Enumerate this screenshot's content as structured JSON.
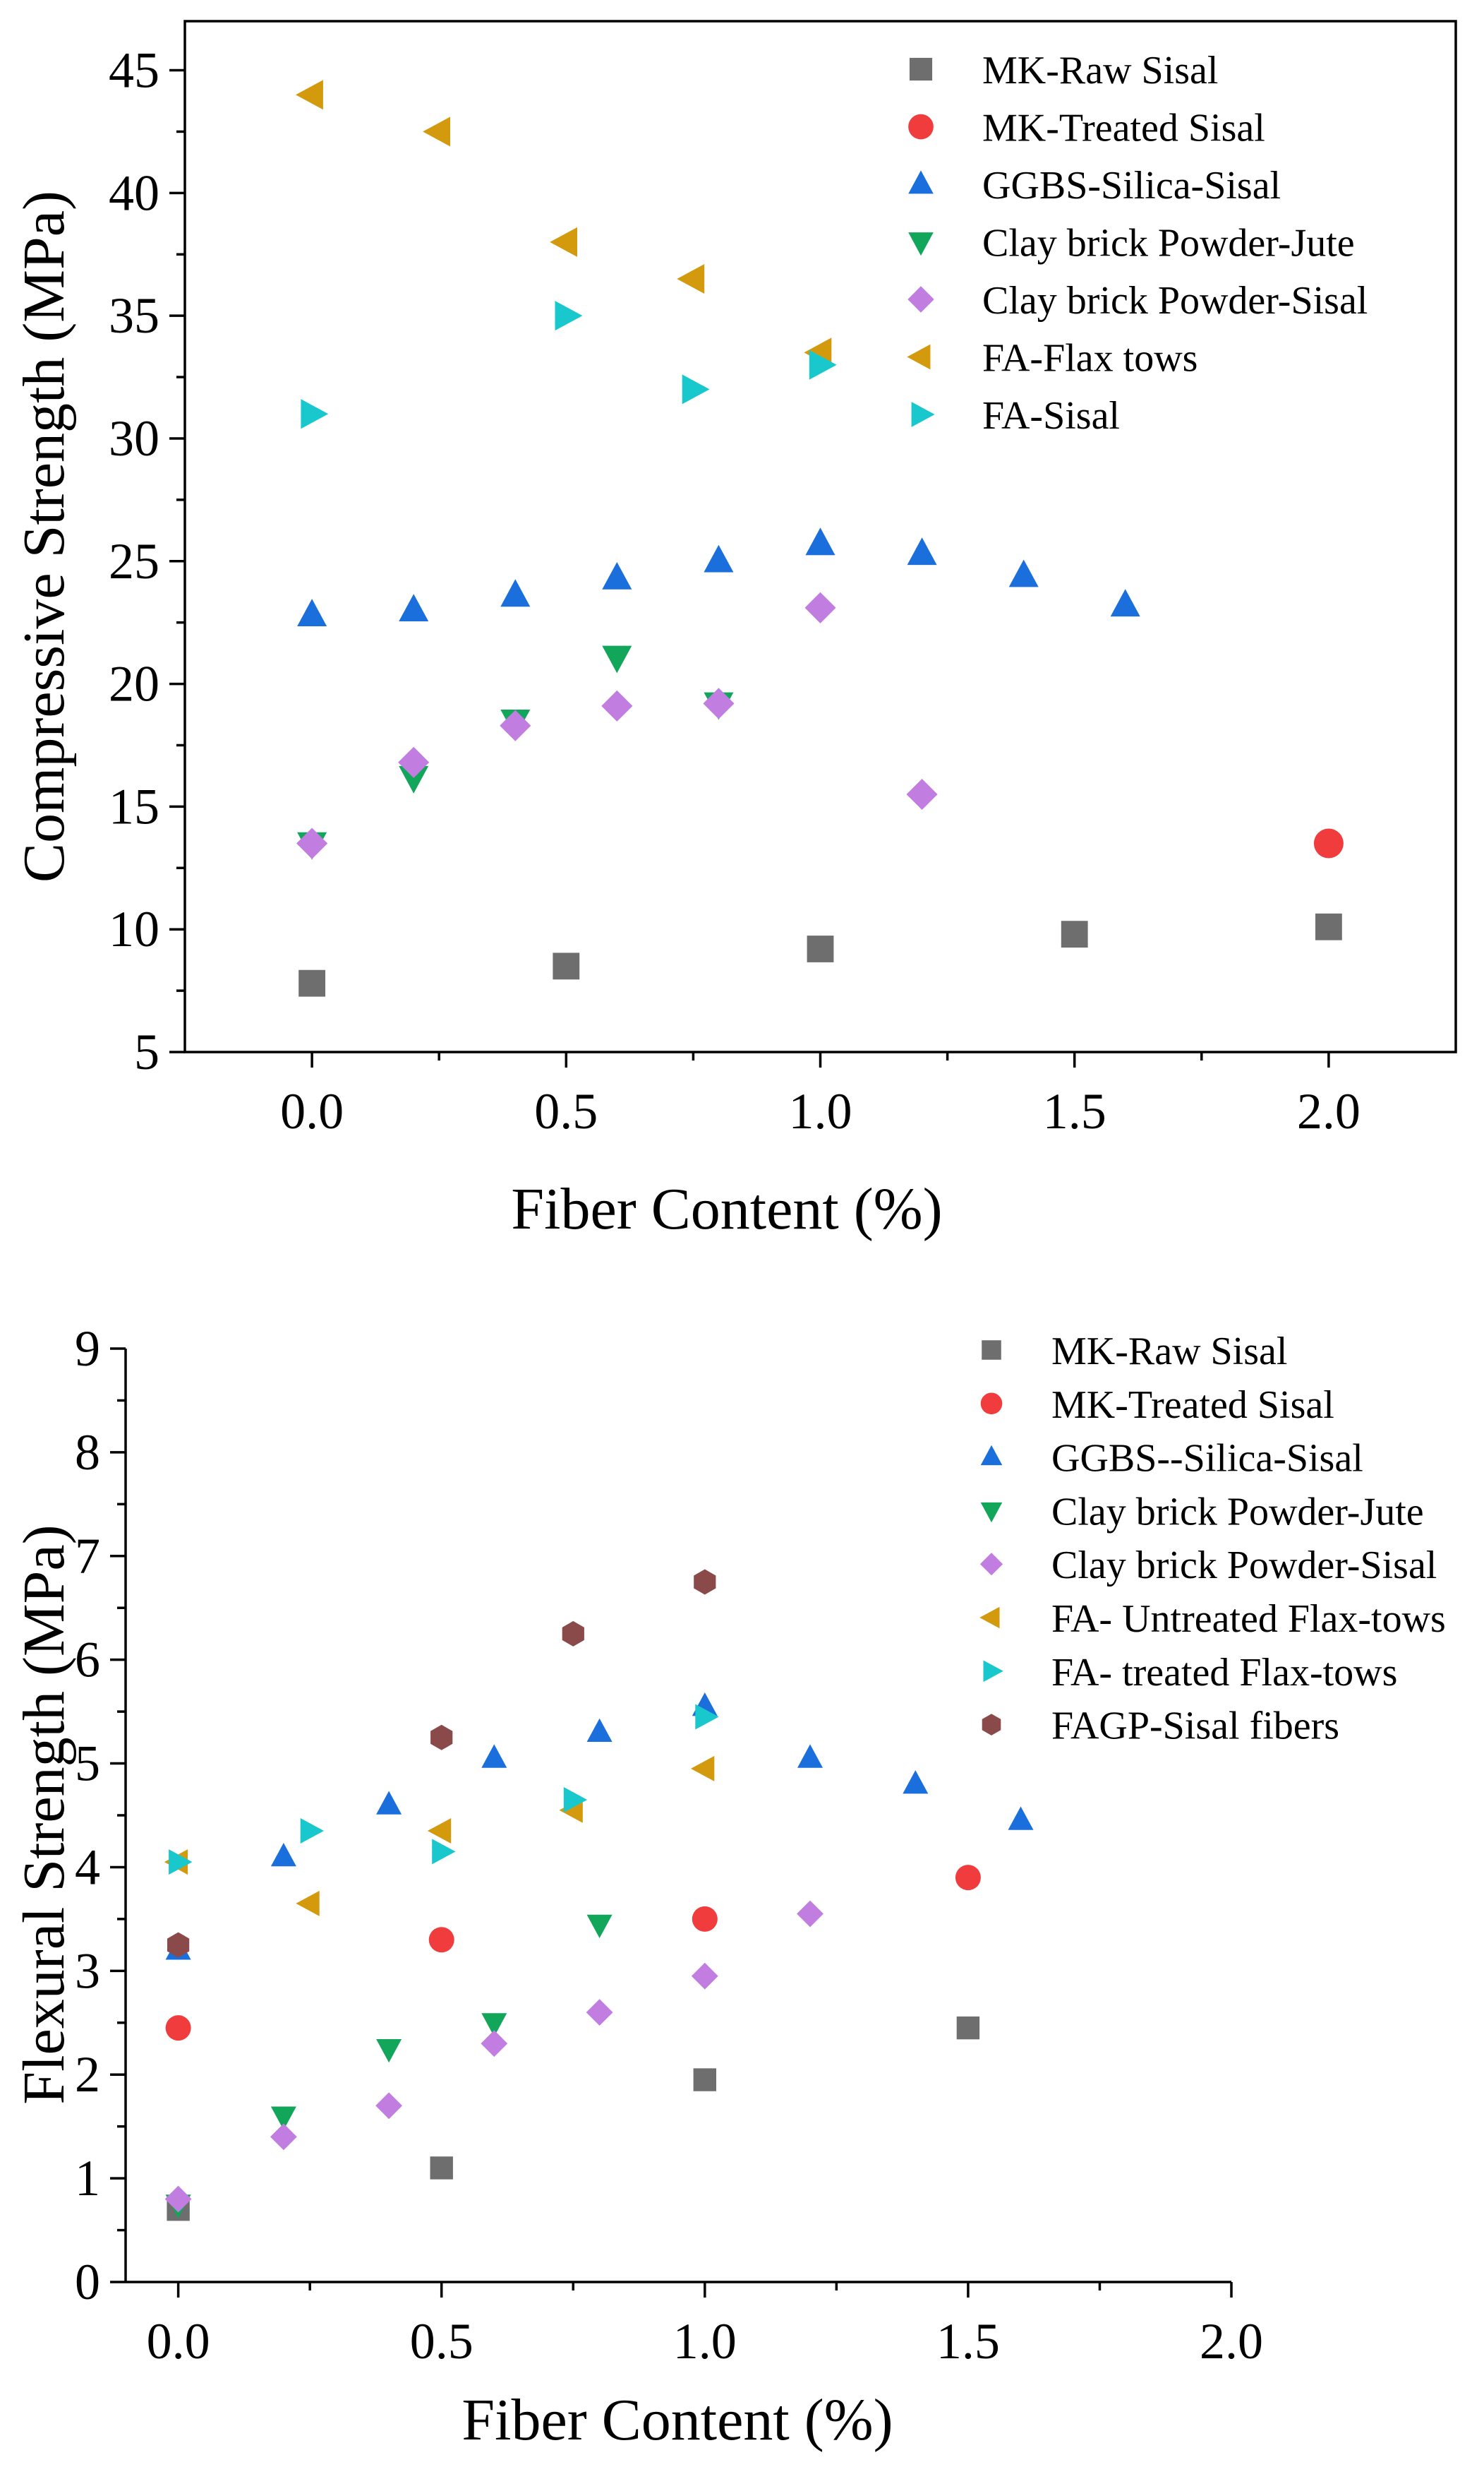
{
  "chart_data": [
    {
      "type": "scatter",
      "title": "",
      "xlabel": "Fiber Content (%)",
      "ylabel": "Compressive Strength (MPa)",
      "xlim": [
        -0.25,
        2.25
      ],
      "ylim": [
        5,
        47
      ],
      "xticks": [
        0.0,
        0.5,
        1.0,
        1.5,
        2.0
      ],
      "xtick_labels": [
        "0.0",
        "0.5",
        "1.0",
        "1.5",
        "2.0"
      ],
      "yticks": [
        5,
        10,
        15,
        20,
        25,
        30,
        35,
        40,
        45
      ],
      "ytick_labels": [
        "5",
        "10",
        "15",
        "20",
        "25",
        "30",
        "35",
        "40",
        "45"
      ],
      "grid": false,
      "legend": "top-right",
      "series": [
        {
          "name": "MK-Raw Sisal",
          "marker": "square",
          "color": "#6e6e6e",
          "x": [
            0,
            0.5,
            1.0,
            1.5,
            2.0
          ],
          "y": [
            7.8,
            8.5,
            9.2,
            9.8,
            10.1
          ]
        },
        {
          "name": "MK-Treated Sisal",
          "marker": "circle",
          "color": "#f03c3c",
          "x": [
            2.0
          ],
          "y": [
            13.5
          ]
        },
        {
          "name": "GGBS-Silica-Sisal",
          "marker": "triangle-up",
          "color": "#1a6fdc",
          "x": [
            0,
            0.2,
            0.4,
            0.6,
            0.8,
            1.0,
            1.2,
            1.4,
            1.6
          ],
          "y": [
            22.8,
            23.0,
            23.6,
            24.3,
            25.0,
            25.7,
            25.3,
            24.4,
            23.2
          ]
        },
        {
          "name": "Clay brick Powder-Jute",
          "marker": "triangle-down",
          "color": "#12a65a",
          "x": [
            0,
            0.2,
            0.4,
            0.6,
            0.8
          ],
          "y": [
            13.5,
            16.2,
            18.5,
            21.1,
            19.2
          ]
        },
        {
          "name": "Clay brick Powder-Sisal",
          "marker": "diamond",
          "color": "#c17ee0",
          "x": [
            0,
            0.2,
            0.4,
            0.6,
            0.8,
            1.0,
            1.2
          ],
          "y": [
            13.5,
            16.8,
            18.3,
            19.1,
            19.2,
            23.1,
            15.5
          ]
        },
        {
          "name": "FA-Flax tows",
          "marker": "triangle-left",
          "color": "#d49a0e",
          "x": [
            0,
            0.25,
            0.5,
            0.75,
            1.0
          ],
          "y": [
            44.0,
            42.5,
            38.0,
            36.5,
            33.5
          ]
        },
        {
          "name": "FA-Sisal",
          "marker": "triangle-right",
          "color": "#18c8cc",
          "x": [
            0,
            0.5,
            0.75,
            1.0
          ],
          "y": [
            31.0,
            35.0,
            32.0,
            33.0
          ]
        }
      ]
    },
    {
      "type": "scatter",
      "title": "",
      "xlabel": "Fiber Content (%)",
      "ylabel": "Flexural Strength (MPa)",
      "xlim": [
        -0.1,
        2.0
      ],
      "ylim": [
        0,
        9
      ],
      "xticks": [
        0.0,
        0.5,
        1.0,
        1.5,
        2.0
      ],
      "xtick_labels": [
        "0.0",
        "0.5",
        "1.0",
        "1.5",
        "2.0"
      ],
      "yticks": [
        0,
        1,
        2,
        3,
        4,
        5,
        6,
        7,
        8,
        9
      ],
      "ytick_labels": [
        "0",
        "1",
        "2",
        "3",
        "4",
        "5",
        "6",
        "7",
        "8",
        "9"
      ],
      "grid": false,
      "legend": "top-right",
      "series": [
        {
          "name": "MK-Raw Sisal",
          "marker": "square",
          "color": "#6e6e6e",
          "x": [
            0,
            0.5,
            1.0,
            1.5
          ],
          "y": [
            0.7,
            1.1,
            1.95,
            2.45
          ]
        },
        {
          "name": "MK-Treated Sisal",
          "marker": "circle",
          "color": "#f03c3c",
          "x": [
            0,
            0.5,
            1.0,
            1.5
          ],
          "y": [
            2.45,
            3.3,
            3.5,
            3.9
          ]
        },
        {
          "name": "GGBS--Silica-Sisal",
          "marker": "triangle-up",
          "color": "#1a6fdc",
          "x": [
            0,
            0.2,
            0.4,
            0.6,
            0.8,
            1.0,
            1.2,
            1.4,
            1.6
          ],
          "y": [
            3.2,
            4.1,
            4.6,
            5.05,
            5.3,
            5.55,
            5.05,
            4.8,
            4.45
          ]
        },
        {
          "name": "Clay brick Powder-Jute",
          "marker": "triangle-down",
          "color": "#12a65a",
          "x": [
            0,
            0.2,
            0.4,
            0.6,
            0.8
          ],
          "y": [
            0.75,
            1.6,
            2.25,
            2.5,
            3.45
          ]
        },
        {
          "name": "Clay brick Powder-Sisal",
          "marker": "diamond",
          "color": "#c17ee0",
          "x": [
            0,
            0.2,
            0.4,
            0.6,
            0.8,
            1.0,
            1.2
          ],
          "y": [
            0.8,
            1.4,
            1.7,
            2.3,
            2.6,
            2.95,
            3.55
          ]
        },
        {
          "name": "FA- Untreated Flax-tows",
          "marker": "triangle-left",
          "color": "#d49a0e",
          "x": [
            0,
            0.25,
            0.5,
            0.75,
            1.0
          ],
          "y": [
            4.05,
            3.65,
            4.35,
            4.55,
            4.95
          ]
        },
        {
          "name": "FA- treated Flax-tows",
          "marker": "triangle-right",
          "color": "#18c8cc",
          "x": [
            0,
            0.25,
            0.5,
            0.75,
            1.0
          ],
          "y": [
            4.05,
            4.35,
            4.15,
            4.65,
            5.45
          ]
        },
        {
          "name": "FAGP-Sisal fibers",
          "marker": "hexagon",
          "color": "#8b4a4a",
          "x": [
            0,
            0.5,
            0.75,
            1.0
          ],
          "y": [
            3.25,
            5.25,
            6.25,
            6.75
          ]
        }
      ]
    }
  ]
}
